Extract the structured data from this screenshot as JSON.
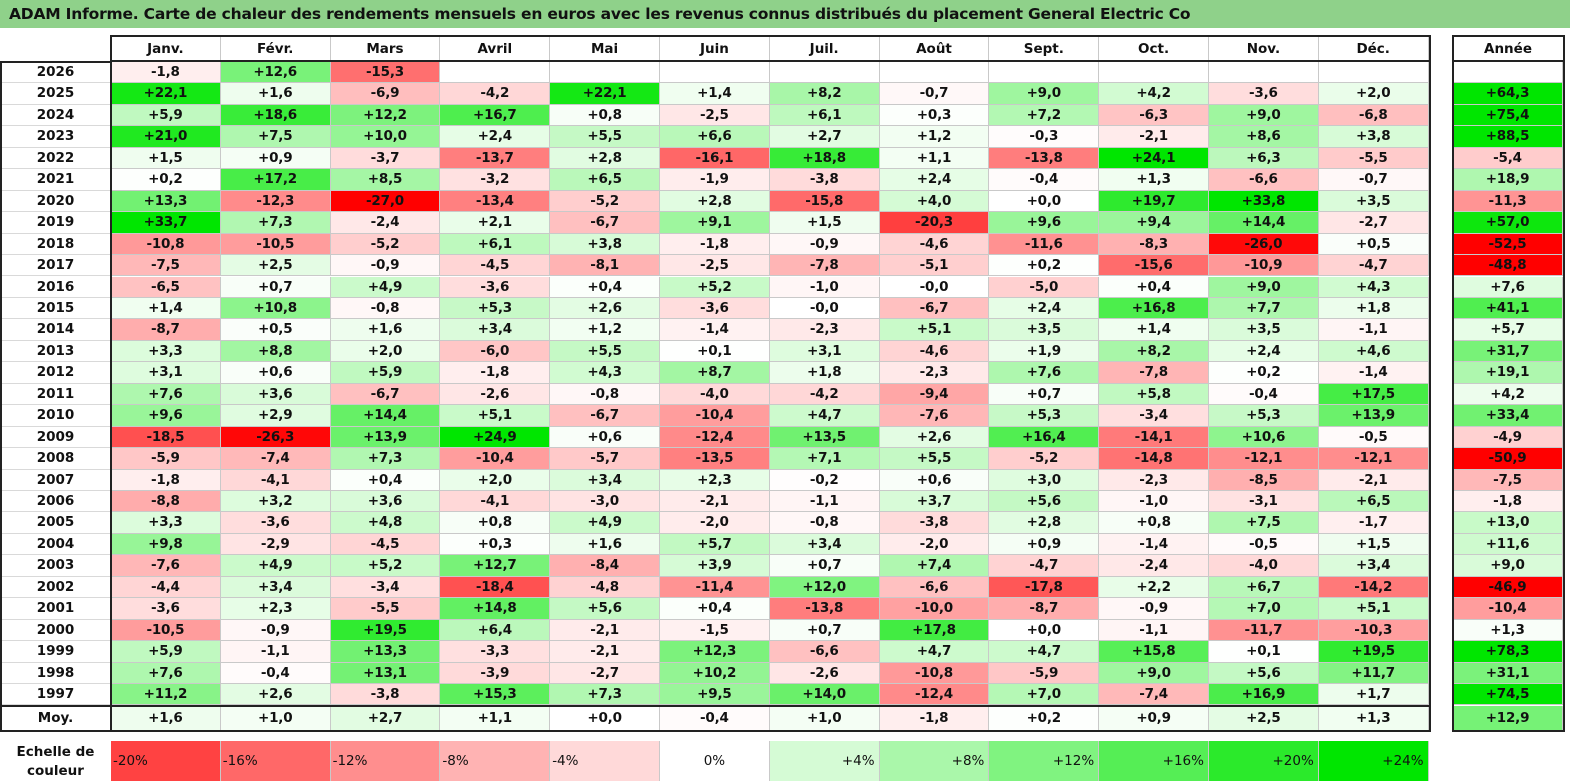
{
  "title": "ADAM Informe. Carte de chaleur des rendements mensuels en euros avec les revenus connus distribués du placement General Electric Co",
  "chart_data": {
    "type": "heatmap",
    "months": [
      "Janv.",
      "Févr.",
      "Mars",
      "Avril",
      "Mai",
      "Juin",
      "Juil.",
      "Août",
      "Sept.",
      "Oct.",
      "Nov.",
      "Déc."
    ],
    "year_header": "Année",
    "rows": [
      {
        "year": "2026",
        "months": [
          "-1,8",
          "+12,6",
          "-15,3",
          "",
          "",
          "",
          "",
          "",
          "",
          "",
          "",
          ""
        ],
        "annual": ""
      },
      {
        "year": "2025",
        "months": [
          "+22,1",
          "+1,6",
          "-6,9",
          "-4,2",
          "+22,1",
          "+1,4",
          "+8,2",
          "-0,7",
          "+9,0",
          "+4,2",
          "-3,6",
          "+2,0"
        ],
        "annual": "+64,3"
      },
      {
        "year": "2024",
        "months": [
          "+5,9",
          "+18,6",
          "+12,2",
          "+16,7",
          "+0,8",
          "-2,5",
          "+6,1",
          "+0,3",
          "+7,2",
          "-6,3",
          "+9,0",
          "-6,8"
        ],
        "annual": "+75,4"
      },
      {
        "year": "2023",
        "months": [
          "+21,0",
          "+7,5",
          "+10,0",
          "+2,4",
          "+5,5",
          "+6,6",
          "+2,7",
          "+1,2",
          "-0,3",
          "-2,1",
          "+8,6",
          "+3,8"
        ],
        "annual": "+88,5"
      },
      {
        "year": "2022",
        "months": [
          "+1,5",
          "+0,9",
          "-3,7",
          "-13,7",
          "+2,8",
          "-16,1",
          "+18,8",
          "+1,1",
          "-13,8",
          "+24,1",
          "+6,3",
          "-5,5"
        ],
        "annual": "-5,4"
      },
      {
        "year": "2021",
        "months": [
          "+0,2",
          "+17,2",
          "+8,5",
          "-3,2",
          "+6,5",
          "-1,9",
          "-3,8",
          "+2,4",
          "-0,4",
          "+1,3",
          "-6,6",
          "-0,7"
        ],
        "annual": "+18,9"
      },
      {
        "year": "2020",
        "months": [
          "+13,3",
          "-12,3",
          "-27,0",
          "-13,4",
          "-5,2",
          "+2,8",
          "-15,8",
          "+4,0",
          "+0,0",
          "+19,7",
          "+33,8",
          "+3,5"
        ],
        "annual": "-11,3"
      },
      {
        "year": "2019",
        "months": [
          "+33,7",
          "+7,3",
          "-2,4",
          "+2,1",
          "-6,7",
          "+9,1",
          "+1,5",
          "-20,3",
          "+9,6",
          "+9,4",
          "+14,4",
          "-2,7"
        ],
        "annual": "+57,0"
      },
      {
        "year": "2018",
        "months": [
          "-10,8",
          "-10,5",
          "-5,2",
          "+6,1",
          "+3,8",
          "-1,8",
          "-0,9",
          "-4,6",
          "-11,6",
          "-8,3",
          "-26,0",
          "+0,5"
        ],
        "annual": "-52,5"
      },
      {
        "year": "2017",
        "months": [
          "-7,5",
          "+2,5",
          "-0,9",
          "-4,5",
          "-8,1",
          "-2,5",
          "-7,8",
          "-5,1",
          "+0,2",
          "-15,6",
          "-10,9",
          "-4,7"
        ],
        "annual": "-48,8"
      },
      {
        "year": "2016",
        "months": [
          "-6,5",
          "+0,7",
          "+4,9",
          "-3,6",
          "+0,4",
          "+5,2",
          "-1,0",
          "-0,0",
          "-5,0",
          "+0,4",
          "+9,0",
          "+4,3"
        ],
        "annual": "+7,6"
      },
      {
        "year": "2015",
        "months": [
          "+1,4",
          "+10,8",
          "-0,8",
          "+5,3",
          "+2,6",
          "-3,6",
          "-0,0",
          "-6,7",
          "+2,4",
          "+16,8",
          "+7,7",
          "+1,8"
        ],
        "annual": "+41,1"
      },
      {
        "year": "2014",
        "months": [
          "-8,7",
          "+0,5",
          "+1,6",
          "+3,4",
          "+1,2",
          "-1,4",
          "-2,3",
          "+5,1",
          "+3,5",
          "+1,4",
          "+3,5",
          "-1,1"
        ],
        "annual": "+5,7"
      },
      {
        "year": "2013",
        "months": [
          "+3,3",
          "+8,8",
          "+2,0",
          "-6,0",
          "+5,5",
          "+0,1",
          "+3,1",
          "-4,6",
          "+1,9",
          "+8,2",
          "+2,4",
          "+4,6"
        ],
        "annual": "+31,7"
      },
      {
        "year": "2012",
        "months": [
          "+3,1",
          "+0,6",
          "+5,9",
          "-1,8",
          "+4,3",
          "+8,7",
          "+1,8",
          "-2,3",
          "+7,6",
          "-7,8",
          "+0,2",
          "-1,4"
        ],
        "annual": "+19,1"
      },
      {
        "year": "2011",
        "months": [
          "+7,6",
          "+3,6",
          "-6,7",
          "-2,6",
          "-0,8",
          "-4,0",
          "-4,2",
          "-9,4",
          "+0,7",
          "+5,8",
          "-0,4",
          "+17,5"
        ],
        "annual": "+4,2"
      },
      {
        "year": "2010",
        "months": [
          "+9,6",
          "+2,9",
          "+14,4",
          "+5,1",
          "-6,7",
          "-10,4",
          "+4,7",
          "-7,6",
          "+5,3",
          "-3,4",
          "+5,3",
          "+13,9"
        ],
        "annual": "+33,4"
      },
      {
        "year": "2009",
        "months": [
          "-18,5",
          "-26,3",
          "+13,9",
          "+24,9",
          "+0,6",
          "-12,4",
          "+13,5",
          "+2,6",
          "+16,4",
          "-14,1",
          "+10,6",
          "-0,5"
        ],
        "annual": "-4,9"
      },
      {
        "year": "2008",
        "months": [
          "-5,9",
          "-7,4",
          "+7,3",
          "-10,4",
          "-5,7",
          "-13,5",
          "+7,1",
          "+5,5",
          "-5,2",
          "-14,8",
          "-12,1",
          "-12,1"
        ],
        "annual": "-50,9"
      },
      {
        "year": "2007",
        "months": [
          "-1,8",
          "-4,1",
          "+0,4",
          "+2,0",
          "+3,4",
          "+2,3",
          "-0,2",
          "+0,6",
          "+3,0",
          "-2,3",
          "-8,5",
          "-2,1"
        ],
        "annual": "-7,5"
      },
      {
        "year": "2006",
        "months": [
          "-8,8",
          "+3,2",
          "+3,6",
          "-4,1",
          "-3,0",
          "-2,1",
          "-1,1",
          "+3,7",
          "+5,6",
          "-1,0",
          "-3,1",
          "+6,5"
        ],
        "annual": "-1,8"
      },
      {
        "year": "2005",
        "months": [
          "+3,3",
          "-3,6",
          "+4,8",
          "+0,8",
          "+4,9",
          "-2,0",
          "-0,8",
          "-3,8",
          "+2,8",
          "+0,8",
          "+7,5",
          "-1,7"
        ],
        "annual": "+13,0"
      },
      {
        "year": "2004",
        "months": [
          "+9,8",
          "-2,9",
          "-4,5",
          "+0,3",
          "+1,6",
          "+5,7",
          "+3,4",
          "-2,0",
          "+0,9",
          "-1,4",
          "-0,5",
          "+1,5"
        ],
        "annual": "+11,6"
      },
      {
        "year": "2003",
        "months": [
          "-7,6",
          "+4,9",
          "+5,2",
          "+12,7",
          "-8,4",
          "+3,9",
          "+0,7",
          "+7,4",
          "-4,7",
          "-2,4",
          "-4,0",
          "+3,4"
        ],
        "annual": "+9,0"
      },
      {
        "year": "2002",
        "months": [
          "-4,4",
          "+3,4",
          "-3,4",
          "-18,4",
          "-4,8",
          "-11,4",
          "+12,0",
          "-6,6",
          "-17,8",
          "+2,2",
          "+6,7",
          "-14,2"
        ],
        "annual": "-46,9"
      },
      {
        "year": "2001",
        "months": [
          "-3,6",
          "+2,3",
          "-5,5",
          "+14,8",
          "+5,6",
          "+0,4",
          "-13,8",
          "-10,0",
          "-8,7",
          "-0,9",
          "+7,0",
          "+5,1"
        ],
        "annual": "-10,4"
      },
      {
        "year": "2000",
        "months": [
          "-10,5",
          "-0,9",
          "+19,5",
          "+6,4",
          "-2,1",
          "-1,5",
          "+0,7",
          "+17,8",
          "+0,0",
          "-1,1",
          "-11,7",
          "-10,3"
        ],
        "annual": "+1,3"
      },
      {
        "year": "1999",
        "months": [
          "+5,9",
          "-1,1",
          "+13,3",
          "-3,3",
          "-2,1",
          "+12,3",
          "-6,6",
          "+4,7",
          "+4,7",
          "+15,8",
          "+0,1",
          "+19,5"
        ],
        "annual": "+78,3"
      },
      {
        "year": "1998",
        "months": [
          "+7,6",
          "-0,4",
          "+13,1",
          "-3,9",
          "-2,7",
          "+10,2",
          "-2,6",
          "-10,8",
          "-5,9",
          "+9,0",
          "+5,6",
          "+11,7"
        ],
        "annual": "+31,1"
      },
      {
        "year": "1997",
        "months": [
          "+11,2",
          "+2,6",
          "-3,8",
          "+15,3",
          "+7,3",
          "+9,5",
          "+14,0",
          "-12,4",
          "+7,0",
          "-7,4",
          "+16,9",
          "+1,7"
        ],
        "annual": "+74,5"
      }
    ],
    "average": {
      "label": "Moy.",
      "months": [
        "+1,6",
        "+1,0",
        "+2,7",
        "+1,1",
        "+0,0",
        "-0,4",
        "+1,0",
        "-1,8",
        "+0,2",
        "+0,9",
        "+2,5",
        "+1,3"
      ],
      "annual": "+12,9"
    },
    "legend": {
      "title_line1": "Echelle de",
      "title_line2": "couleur",
      "stops": [
        "-20%",
        "-16%",
        "-12%",
        "-8%",
        "-4%",
        "0%",
        "+4%",
        "+8%",
        "+12%",
        "+16%",
        "+20%",
        "+24%"
      ],
      "stop_values": [
        -20,
        -16,
        -12,
        -8,
        -4,
        0,
        4,
        8,
        12,
        16,
        20,
        24
      ]
    },
    "colors": {
      "negative_max": "#ff0000",
      "positive_max": "#00e000",
      "neutral": "#ffffff",
      "title_bar": "#8fd18a"
    }
  }
}
